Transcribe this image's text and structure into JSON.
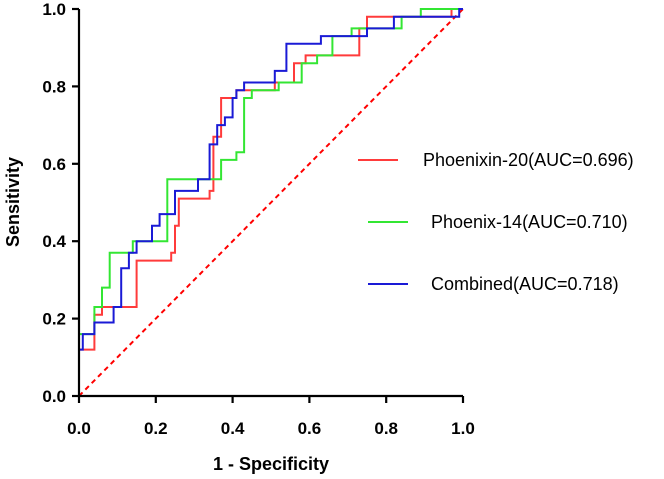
{
  "chart_data": {
    "type": "line",
    "title": "",
    "xlabel": "1 - Specificity",
    "ylabel": "Sensitivity",
    "xlim": [
      0,
      1
    ],
    "ylim": [
      0,
      1
    ],
    "x_ticks": [
      "0.0",
      "0.2",
      "0.4",
      "0.6",
      "0.8",
      "1.0"
    ],
    "y_ticks": [
      "0.0",
      "0.2",
      "0.4",
      "0.6",
      "0.8",
      "1.0"
    ],
    "legend_position": "right",
    "reference_line": {
      "name": "chance",
      "color": "#ff0000",
      "style": "dashed",
      "points": [
        [
          0,
          0
        ],
        [
          1,
          1
        ]
      ]
    },
    "series": [
      {
        "name": "Phoenixin-20(AUC=0.696)",
        "color": "#ff3b3b",
        "points": [
          [
            0,
            0
          ],
          [
            0,
            0.12
          ],
          [
            0.04,
            0.12
          ],
          [
            0.04,
            0.21
          ],
          [
            0.06,
            0.21
          ],
          [
            0.06,
            0.23
          ],
          [
            0.15,
            0.23
          ],
          [
            0.15,
            0.35
          ],
          [
            0.24,
            0.35
          ],
          [
            0.24,
            0.37
          ],
          [
            0.25,
            0.37
          ],
          [
            0.25,
            0.44
          ],
          [
            0.26,
            0.44
          ],
          [
            0.26,
            0.51
          ],
          [
            0.34,
            0.51
          ],
          [
            0.34,
            0.53
          ],
          [
            0.35,
            0.53
          ],
          [
            0.35,
            0.67
          ],
          [
            0.37,
            0.67
          ],
          [
            0.37,
            0.77
          ],
          [
            0.41,
            0.77
          ],
          [
            0.41,
            0.79
          ],
          [
            0.51,
            0.79
          ],
          [
            0.51,
            0.81
          ],
          [
            0.56,
            0.81
          ],
          [
            0.56,
            0.86
          ],
          [
            0.59,
            0.86
          ],
          [
            0.59,
            0.88
          ],
          [
            0.73,
            0.88
          ],
          [
            0.73,
            0.95
          ],
          [
            0.75,
            0.95
          ],
          [
            0.75,
            0.98
          ],
          [
            0.97,
            0.98
          ],
          [
            0.97,
            1.0
          ],
          [
            1.0,
            1.0
          ]
        ]
      },
      {
        "name": "Phoenix-14(AUC=0.710)",
        "color": "#33e633",
        "points": [
          [
            0,
            0
          ],
          [
            0,
            0.16
          ],
          [
            0.04,
            0.16
          ],
          [
            0.04,
            0.23
          ],
          [
            0.06,
            0.23
          ],
          [
            0.06,
            0.28
          ],
          [
            0.08,
            0.28
          ],
          [
            0.08,
            0.37
          ],
          [
            0.14,
            0.37
          ],
          [
            0.14,
            0.4
          ],
          [
            0.23,
            0.4
          ],
          [
            0.23,
            0.56
          ],
          [
            0.37,
            0.56
          ],
          [
            0.37,
            0.61
          ],
          [
            0.41,
            0.61
          ],
          [
            0.41,
            0.63
          ],
          [
            0.43,
            0.63
          ],
          [
            0.43,
            0.77
          ],
          [
            0.45,
            0.77
          ],
          [
            0.45,
            0.79
          ],
          [
            0.52,
            0.79
          ],
          [
            0.52,
            0.81
          ],
          [
            0.58,
            0.81
          ],
          [
            0.58,
            0.86
          ],
          [
            0.62,
            0.86
          ],
          [
            0.62,
            0.88
          ],
          [
            0.66,
            0.88
          ],
          [
            0.66,
            0.93
          ],
          [
            0.71,
            0.93
          ],
          [
            0.71,
            0.95
          ],
          [
            0.84,
            0.95
          ],
          [
            0.84,
            0.98
          ],
          [
            0.89,
            0.98
          ],
          [
            0.89,
            1.0
          ],
          [
            1.0,
            1.0
          ]
        ]
      },
      {
        "name": "Combined(AUC=0.718)",
        "color": "#1a1ad6",
        "points": [
          [
            0,
            0
          ],
          [
            0,
            0.12
          ],
          [
            0.01,
            0.12
          ],
          [
            0.01,
            0.16
          ],
          [
            0.04,
            0.16
          ],
          [
            0.04,
            0.19
          ],
          [
            0.09,
            0.19
          ],
          [
            0.09,
            0.23
          ],
          [
            0.11,
            0.23
          ],
          [
            0.11,
            0.33
          ],
          [
            0.13,
            0.33
          ],
          [
            0.13,
            0.37
          ],
          [
            0.15,
            0.37
          ],
          [
            0.15,
            0.4
          ],
          [
            0.19,
            0.4
          ],
          [
            0.19,
            0.44
          ],
          [
            0.21,
            0.44
          ],
          [
            0.21,
            0.47
          ],
          [
            0.25,
            0.47
          ],
          [
            0.25,
            0.53
          ],
          [
            0.31,
            0.53
          ],
          [
            0.31,
            0.56
          ],
          [
            0.34,
            0.56
          ],
          [
            0.34,
            0.65
          ],
          [
            0.36,
            0.65
          ],
          [
            0.36,
            0.7
          ],
          [
            0.38,
            0.7
          ],
          [
            0.38,
            0.72
          ],
          [
            0.4,
            0.72
          ],
          [
            0.4,
            0.77
          ],
          [
            0.41,
            0.77
          ],
          [
            0.41,
            0.79
          ],
          [
            0.43,
            0.79
          ],
          [
            0.43,
            0.81
          ],
          [
            0.51,
            0.81
          ],
          [
            0.51,
            0.84
          ],
          [
            0.54,
            0.84
          ],
          [
            0.54,
            0.91
          ],
          [
            0.63,
            0.91
          ],
          [
            0.63,
            0.93
          ],
          [
            0.75,
            0.93
          ],
          [
            0.75,
            0.95
          ],
          [
            0.82,
            0.95
          ],
          [
            0.82,
            0.98
          ],
          [
            0.99,
            0.98
          ],
          [
            0.99,
            1.0
          ],
          [
            1.0,
            1.0
          ]
        ]
      }
    ]
  }
}
